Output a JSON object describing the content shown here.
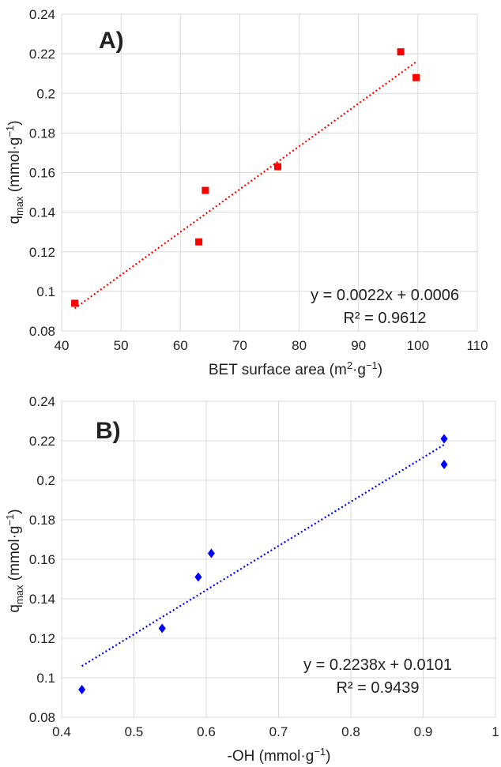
{
  "chart_data": [
    {
      "type": "scatter",
      "panel_label": "A)",
      "xlabel_prefix": "BET surface area (m",
      "xlabel_sup1": "2",
      "xlabel_mid": "·g",
      "xlabel_sup2": "−1",
      "xlabel_suffix": ")",
      "ylabel_main": "q",
      "ylabel_sub": "max",
      "ylabel_rest": " (mmol·g",
      "ylabel_sup": "−1",
      "ylabel_end": ")",
      "xlim": [
        40,
        110
      ],
      "ylim": [
        0.08,
        0.24
      ],
      "x_ticks": [
        40,
        50,
        60,
        70,
        80,
        90,
        100,
        110
      ],
      "y_ticks": [
        0.08,
        0.1,
        0.12,
        0.14,
        0.16,
        0.18,
        0.2,
        0.22,
        0.24
      ],
      "x_tick_labels": [
        "40",
        "50",
        "60",
        "70",
        "80",
        "90",
        "100",
        "110"
      ],
      "y_tick_labels": [
        "0.08",
        "0.1",
        "0.12",
        "0.14",
        "0.16",
        "0.18",
        "0.2",
        "0.22",
        "0.24"
      ],
      "grid": true,
      "marker": "square",
      "color": "#ff0000",
      "points": [
        {
          "x": 42.2,
          "y": 0.094
        },
        {
          "x": 63.1,
          "y": 0.125
        },
        {
          "x": 64.2,
          "y": 0.151
        },
        {
          "x": 76.4,
          "y": 0.163
        },
        {
          "x": 97.1,
          "y": 0.221
        },
        {
          "x": 99.7,
          "y": 0.208
        }
      ],
      "trendline": {
        "x_from": 42.2,
        "x_to": 99.7,
        "y_from": 0.0914,
        "y_to": 0.2159
      },
      "equation": "y = 0.0022x + 0.0006",
      "r_squared": "R² = 0.9612",
      "annotation_position": "bottom-right"
    },
    {
      "type": "scatter",
      "panel_label": "B)",
      "xlabel_prefix": "-OH (mmol·g",
      "xlabel_sup1": "−1",
      "xlabel_mid": "",
      "xlabel_sup2": "",
      "xlabel_suffix": ")",
      "ylabel_main": "q",
      "ylabel_sub": "max",
      "ylabel_rest": " (mmol·g",
      "ylabel_sup": "−1",
      "ylabel_end": ")",
      "xlim": [
        0.4,
        1.0
      ],
      "ylim": [
        0.08,
        0.24
      ],
      "x_ticks": [
        0.4,
        0.5,
        0.6,
        0.7,
        0.8,
        0.9,
        1.0
      ],
      "y_ticks": [
        0.08,
        0.1,
        0.12,
        0.14,
        0.16,
        0.18,
        0.2,
        0.22,
        0.24
      ],
      "x_tick_labels": [
        "0.4",
        "0.5",
        "0.6",
        "0.7",
        "0.8",
        "0.9",
        "1"
      ],
      "y_tick_labels": [
        "0.08",
        "0.1",
        "0.12",
        "0.14",
        "0.16",
        "0.18",
        "0.2",
        "0.22",
        "0.24"
      ],
      "grid": true,
      "marker": "diamond",
      "color": "#0000ff",
      "points": [
        {
          "x": 0.428,
          "y": 0.094
        },
        {
          "x": 0.539,
          "y": 0.125
        },
        {
          "x": 0.589,
          "y": 0.151
        },
        {
          "x": 0.607,
          "y": 0.163
        },
        {
          "x": 0.929,
          "y": 0.221
        },
        {
          "x": 0.929,
          "y": 0.208
        }
      ],
      "trendline": {
        "x_from": 0.428,
        "x_to": 0.929,
        "y_from": 0.1059,
        "y_to": 0.218
      },
      "equation": "y = 0.2238x + 0.0101",
      "r_squared": "R² = 0.9439",
      "annotation_position": "bottom-right"
    }
  ]
}
